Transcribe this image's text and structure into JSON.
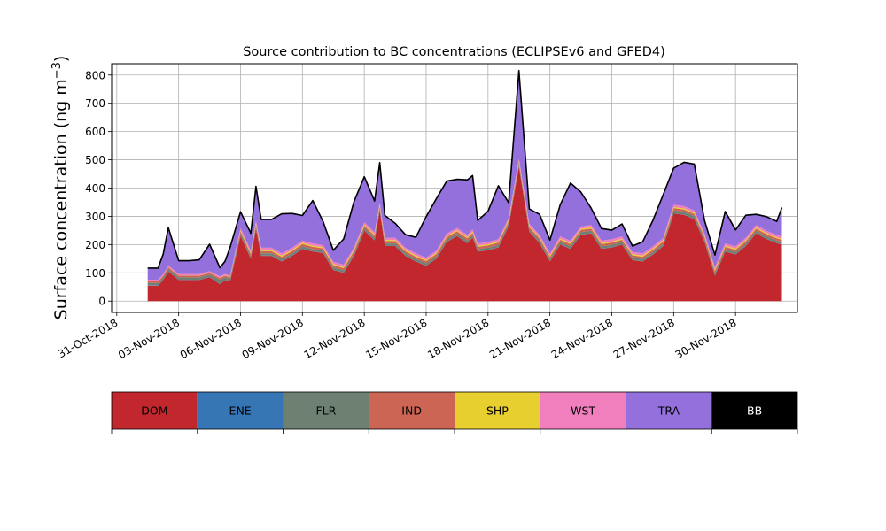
{
  "chart_data": {
    "type": "area",
    "stacked": true,
    "title": "Source contribution to BC concentrations (ECLIPSEv6 and GFED4)",
    "ylabel_main": "Surface concentration (ng m",
    "ylabel_exp": "−3",
    "ylabel_close": ")",
    "xlabel": "",
    "ylim": [
      -40,
      840
    ],
    "xlim": [
      "2018-10-30T18:00",
      "2018-12-03T00:00"
    ],
    "yticks": [
      0,
      100,
      200,
      300,
      400,
      500,
      600,
      700,
      800
    ],
    "xticks": [
      "31-Oct-2018",
      "03-Nov-2018",
      "06-Nov-2018",
      "09-Nov-2018",
      "12-Nov-2018",
      "15-Nov-2018",
      "18-Nov-2018",
      "21-Nov-2018",
      "24-Nov-2018",
      "27-Nov-2018",
      "30-Nov-2018"
    ],
    "grid": true,
    "legend_placement": "colorbar-below",
    "outline_series": "total",
    "x": [
      "2018-11-01T12:00",
      "2018-11-02T00:00",
      "2018-11-02T06:00",
      "2018-11-02T12:00",
      "2018-11-03T00:00",
      "2018-11-03T12:00",
      "2018-11-04T00:00",
      "2018-11-04T12:00",
      "2018-11-05T00:00",
      "2018-11-05T06:00",
      "2018-11-05T12:00",
      "2018-11-06T00:00",
      "2018-11-06T12:00",
      "2018-11-06T18:00",
      "2018-11-07T00:00",
      "2018-11-07T12:00",
      "2018-11-08T00:00",
      "2018-11-08T12:00",
      "2018-11-09T00:00",
      "2018-11-09T12:00",
      "2018-11-10T00:00",
      "2018-11-10T12:00",
      "2018-11-11T00:00",
      "2018-11-11T12:00",
      "2018-11-12T00:00",
      "2018-11-12T12:00",
      "2018-11-12T18:00",
      "2018-11-13T00:00",
      "2018-11-13T12:00",
      "2018-11-14T00:00",
      "2018-11-14T12:00",
      "2018-11-15T00:00",
      "2018-11-15T12:00",
      "2018-11-16T00:00",
      "2018-11-16T12:00",
      "2018-11-17T00:00",
      "2018-11-17T06:00",
      "2018-11-17T12:00",
      "2018-11-18T00:00",
      "2018-11-18T12:00",
      "2018-11-19T00:00",
      "2018-11-19T12:00",
      "2018-11-20T00:00",
      "2018-11-20T12:00",
      "2018-11-21T00:00",
      "2018-11-21T12:00",
      "2018-11-22T00:00",
      "2018-11-22T12:00",
      "2018-11-23T00:00",
      "2018-11-23T12:00",
      "2018-11-24T00:00",
      "2018-11-24T12:00",
      "2018-11-25T00:00",
      "2018-11-25T12:00",
      "2018-11-26T00:00",
      "2018-11-26T12:00",
      "2018-11-27T00:00",
      "2018-11-27T12:00",
      "2018-11-28T00:00",
      "2018-11-28T12:00",
      "2018-11-29T00:00",
      "2018-11-29T12:00",
      "2018-11-30T00:00",
      "2018-11-30T12:00",
      "2018-12-01T00:00",
      "2018-12-01T12:00",
      "2018-12-02T00:00",
      "2018-12-02T06:00"
    ],
    "series": [
      {
        "name": "DOM",
        "color": "#c1272d",
        "values": [
          55,
          55,
          75,
          105,
          75,
          75,
          75,
          85,
          60,
          75,
          70,
          230,
          150,
          255,
          160,
          160,
          140,
          160,
          185,
          175,
          170,
          110,
          100,
          160,
          250,
          215,
          320,
          195,
          195,
          160,
          140,
          125,
          150,
          210,
          230,
          205,
          225,
          175,
          180,
          190,
          265,
          475,
          245,
          205,
          140,
          200,
          185,
          235,
          240,
          185,
          190,
          200,
          145,
          140,
          165,
          195,
          310,
          305,
          290,
          210,
          90,
          175,
          165,
          195,
          240,
          220,
          205,
          200
        ]
      },
      {
        "name": "ENE",
        "color": "#3676b5",
        "values": [
          1,
          1,
          1,
          1,
          1,
          1,
          1,
          1,
          1,
          1,
          1,
          1,
          1,
          1,
          1,
          1,
          1,
          1,
          1,
          1,
          1,
          1,
          1,
          1,
          1,
          1,
          1,
          1,
          1,
          1,
          1,
          1,
          1,
          1,
          1,
          1,
          1,
          1,
          1,
          1,
          1,
          1,
          1,
          1,
          1,
          1,
          1,
          1,
          1,
          1,
          1,
          1,
          1,
          1,
          1,
          1,
          1,
          1,
          1,
          1,
          1,
          1,
          1,
          1,
          1,
          1,
          1,
          1
        ]
      },
      {
        "name": "FLR",
        "color": "#6d8072",
        "values": [
          8,
          8,
          8,
          8,
          8,
          8,
          8,
          8,
          15,
          8,
          8,
          8,
          8,
          8,
          8,
          8,
          8,
          8,
          8,
          8,
          8,
          8,
          8,
          8,
          8,
          8,
          8,
          8,
          8,
          8,
          8,
          8,
          8,
          8,
          8,
          8,
          8,
          8,
          8,
          8,
          8,
          8,
          8,
          8,
          8,
          8,
          8,
          8,
          8,
          8,
          8,
          8,
          8,
          8,
          8,
          8,
          10,
          10,
          10,
          8,
          8,
          8,
          8,
          8,
          8,
          8,
          8,
          8
        ]
      },
      {
        "name": "IND",
        "color": "#cc6554",
        "values": [
          6,
          6,
          6,
          6,
          6,
          6,
          6,
          6,
          6,
          6,
          6,
          8,
          8,
          8,
          8,
          8,
          8,
          8,
          8,
          8,
          8,
          8,
          8,
          8,
          8,
          8,
          8,
          8,
          8,
          8,
          8,
          8,
          8,
          8,
          8,
          8,
          8,
          8,
          8,
          8,
          8,
          8,
          8,
          8,
          8,
          8,
          8,
          8,
          8,
          8,
          8,
          8,
          8,
          8,
          8,
          8,
          8,
          8,
          8,
          8,
          8,
          8,
          8,
          8,
          8,
          8,
          8,
          8
        ]
      },
      {
        "name": "SHP",
        "color": "#e6cf2e",
        "values": [
          1,
          1,
          1,
          1,
          1,
          1,
          1,
          1,
          1,
          1,
          1,
          4,
          4,
          4,
          4,
          4,
          4,
          4,
          4,
          4,
          4,
          4,
          4,
          4,
          4,
          4,
          4,
          4,
          4,
          4,
          4,
          4,
          4,
          4,
          4,
          4,
          4,
          4,
          4,
          4,
          4,
          4,
          4,
          4,
          4,
          4,
          4,
          4,
          4,
          4,
          4,
          4,
          4,
          4,
          4,
          4,
          4,
          4,
          4,
          4,
          4,
          4,
          4,
          4,
          4,
          4,
          4,
          4
        ]
      },
      {
        "name": "WST",
        "color": "#f17fbd",
        "values": [
          5,
          5,
          5,
          5,
          5,
          5,
          5,
          5,
          5,
          5,
          5,
          8,
          8,
          8,
          8,
          8,
          8,
          8,
          8,
          8,
          8,
          8,
          8,
          8,
          8,
          8,
          8,
          8,
          8,
          8,
          8,
          8,
          8,
          8,
          8,
          8,
          8,
          8,
          8,
          8,
          8,
          8,
          8,
          8,
          8,
          8,
          8,
          8,
          8,
          8,
          8,
          8,
          8,
          8,
          8,
          8,
          8,
          8,
          8,
          8,
          8,
          8,
          8,
          8,
          8,
          8,
          8,
          8
        ]
      },
      {
        "name": "TRA",
        "color": "#9370db",
        "values": [
          41,
          41,
          70,
          134,
          47,
          47,
          50,
          95,
          30,
          45,
          100,
          57,
          61,
          122,
          100,
          100,
          140,
          121,
          89,
          152,
          83,
          41,
          91,
          163,
          161,
          110,
          141,
          79,
          51,
          46,
          57,
          145,
          184,
          186,
          172,
          195,
          190,
          81,
          109,
          189,
          54,
          312,
          52,
          73,
          47,
          112,
          204,
          122,
          60,
          43,
          32,
          44,
          21,
          41,
          93,
          154,
          129,
          155,
          164,
          46,
          44,
          113,
          58,
          80,
          38,
          50,
          48,
          102
        ]
      },
      {
        "name": "BB",
        "color": "#000000",
        "values": [
          0,
          0,
          0,
          0,
          0,
          0,
          0,
          0,
          0,
          0,
          0,
          0,
          0,
          0,
          0,
          0,
          0,
          0,
          0,
          0,
          0,
          0,
          0,
          0,
          0,
          0,
          0,
          0,
          0,
          0,
          0,
          0,
          0,
          0,
          0,
          0,
          0,
          0,
          0,
          0,
          0,
          0,
          0,
          0,
          0,
          0,
          0,
          0,
          0,
          0,
          0,
          0,
          0,
          0,
          0,
          0,
          0,
          0,
          0,
          0,
          0,
          0,
          0,
          0,
          0,
          0,
          0,
          0
        ]
      }
    ]
  }
}
